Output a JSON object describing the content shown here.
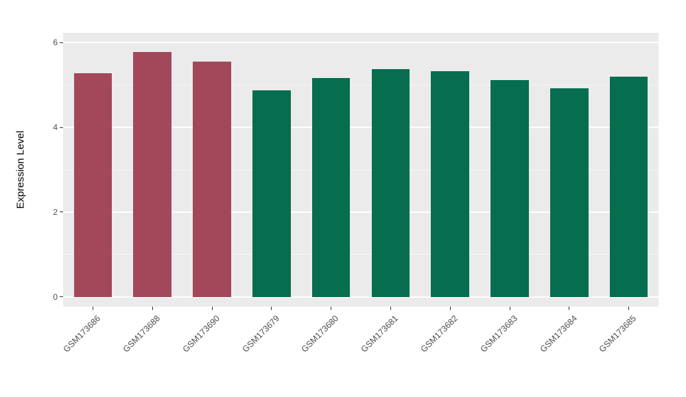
{
  "chart_data": {
    "type": "bar",
    "title": "",
    "xlabel": "",
    "ylabel": "Expression Level",
    "categories": [
      "GSM173686",
      "GSM173688",
      "GSM173690",
      "GSM173679",
      "GSM173680",
      "GSM173681",
      "GSM173682",
      "GSM173683",
      "GSM173684",
      "GSM173685"
    ],
    "values": [
      5.28,
      5.78,
      5.55,
      4.88,
      5.17,
      5.37,
      5.32,
      5.12,
      4.93,
      5.19
    ],
    "bar_colors": [
      "#A2485A",
      "#A2485A",
      "#A2485A",
      "#076D4F",
      "#076D4F",
      "#076D4F",
      "#076D4F",
      "#076D4F",
      "#076D4F",
      "#076D4F"
    ],
    "groups": {
      "group1": {
        "color": "#A2485A",
        "samples": [
          "GSM173686",
          "GSM173688",
          "GSM173690"
        ]
      },
      "group2": {
        "color": "#076D4F",
        "samples": [
          "GSM173679",
          "GSM173680",
          "GSM173681",
          "GSM173682",
          "GSM173683",
          "GSM173684",
          "GSM173685"
        ]
      }
    },
    "y_ticks": [
      0,
      2,
      4,
      6
    ],
    "y_minor_ticks": [
      1,
      3,
      5
    ],
    "ylim": [
      -0.23,
      6.23
    ],
    "grid": true,
    "legend": "none",
    "colors": {
      "panel_bg": "#EBEBEB",
      "grid": "#FFFFFF",
      "tick_text": "#4D4D4D",
      "axis_title_text": "#000000"
    }
  }
}
